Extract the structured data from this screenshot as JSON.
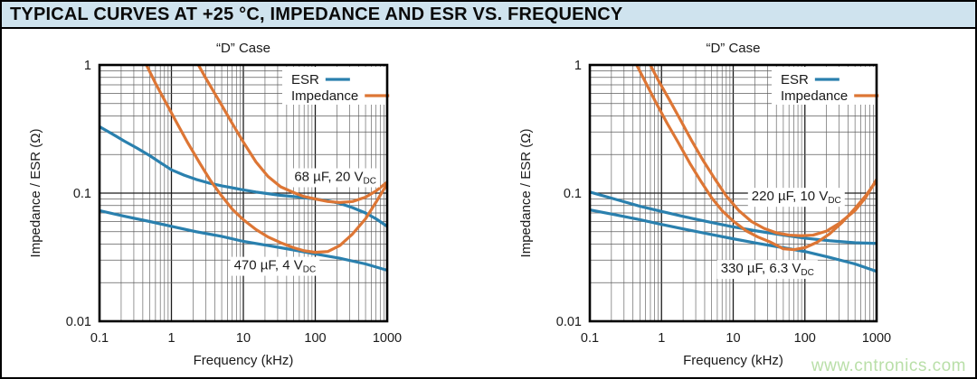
{
  "header": {
    "title": "TYPICAL CURVES AT +25 °C, IMPEDANCE AND ESR VS. FREQUENCY"
  },
  "watermark": {
    "text": "www.cntronics.com"
  },
  "colors": {
    "esr": "#2a80ae",
    "impedance": "#dd7635",
    "header_bg": "#cfe3ee",
    "grid_major": "#1c1c1c",
    "grid_minor": "#5e5e5e",
    "frame": "#000000",
    "text": "#1a1a1a",
    "watermark": "#b9dfa8"
  },
  "chart_data": [
    {
      "type": "line",
      "title": "“D” Case",
      "xlabel": "Frequency (kHz)",
      "ylabel": "Impedance / ESR (Ω)",
      "xscale": "log",
      "yscale": "log",
      "xlim": [
        0.1,
        1000
      ],
      "ylim": [
        0.01,
        1
      ],
      "xtick_labels": [
        "0.1",
        "1",
        "10",
        "100",
        "1000"
      ],
      "ytick_labels": [
        "1",
        "0.1",
        "0.01"
      ],
      "legend": [
        {
          "label": "ESR",
          "role": "esr"
        },
        {
          "label": "Impedance",
          "role": "impedance"
        }
      ],
      "series": [
        {
          "name": "esr-68uf-20vdc",
          "role": "esr",
          "points": [
            [
              0.1,
              0.33
            ],
            [
              0.15,
              0.29
            ],
            [
              0.22,
              0.255
            ],
            [
              0.33,
              0.225
            ],
            [
              0.5,
              0.196
            ],
            [
              0.7,
              0.173
            ],
            [
              1,
              0.152
            ],
            [
              1.5,
              0.138
            ],
            [
              2.2,
              0.128
            ],
            [
              3.3,
              0.12
            ],
            [
              5,
              0.114
            ],
            [
              7,
              0.11
            ],
            [
              10,
              0.106
            ],
            [
              15,
              0.102
            ],
            [
              22,
              0.099
            ],
            [
              33,
              0.096
            ],
            [
              50,
              0.094
            ],
            [
              70,
              0.092
            ],
            [
              100,
              0.09
            ],
            [
              150,
              0.087
            ],
            [
              220,
              0.083
            ],
            [
              330,
              0.077
            ],
            [
              500,
              0.07
            ],
            [
              700,
              0.063
            ],
            [
              1000,
              0.055
            ]
          ]
        },
        {
          "name": "esr-470uf-4vdc",
          "role": "esr",
          "points": [
            [
              0.1,
              0.073
            ],
            [
              0.22,
              0.066
            ],
            [
              0.5,
              0.06
            ],
            [
              1,
              0.055
            ],
            [
              2.2,
              0.05
            ],
            [
              5,
              0.046
            ],
            [
              10,
              0.042
            ],
            [
              22,
              0.039
            ],
            [
              50,
              0.036
            ],
            [
              100,
              0.0335
            ],
            [
              220,
              0.031
            ],
            [
              500,
              0.028
            ],
            [
              1000,
              0.025
            ]
          ]
        },
        {
          "name": "impedance-68uf-20vdc",
          "role": "impedance",
          "points": [
            [
              2.2,
              1.08
            ],
            [
              3,
              0.79
            ],
            [
              4,
              0.6
            ],
            [
              5,
              0.485
            ],
            [
              7,
              0.35
            ],
            [
              10,
              0.25
            ],
            [
              15,
              0.175
            ],
            [
              22,
              0.135
            ],
            [
              33,
              0.112
            ],
            [
              50,
              0.101
            ],
            [
              70,
              0.094
            ],
            [
              100,
              0.09
            ],
            [
              150,
              0.086
            ],
            [
              220,
              0.0845
            ],
            [
              330,
              0.086
            ],
            [
              500,
              0.093
            ],
            [
              700,
              0.104
            ],
            [
              1000,
              0.122
            ]
          ]
        },
        {
          "name": "impedance-470uf-4vdc",
          "role": "impedance",
          "points": [
            [
              0.42,
              1.08
            ],
            [
              0.6,
              0.72
            ],
            [
              0.85,
              0.5
            ],
            [
              1.2,
              0.35
            ],
            [
              1.7,
              0.245
            ],
            [
              2.5,
              0.17
            ],
            [
              3.5,
              0.125
            ],
            [
              5,
              0.095
            ],
            [
              7,
              0.075
            ],
            [
              10,
              0.062
            ],
            [
              15,
              0.052
            ],
            [
              22,
              0.0455
            ],
            [
              33,
              0.041
            ],
            [
              50,
              0.0375
            ],
            [
              70,
              0.0355
            ],
            [
              100,
              0.0345
            ],
            [
              150,
              0.035
            ],
            [
              220,
              0.039
            ],
            [
              330,
              0.048
            ],
            [
              500,
              0.063
            ],
            [
              700,
              0.085
            ],
            [
              1000,
              0.118
            ]
          ]
        }
      ],
      "annotations": [
        {
          "text": "68 µF, 20 V",
          "sub": "DC",
          "x": 190,
          "y": 0.135
        },
        {
          "text": "470 µF, 4 V",
          "sub": "DC",
          "x": 27.5,
          "y": 0.0275
        }
      ]
    },
    {
      "type": "line",
      "title": "“D” Case",
      "xlabel": "Frequency (kHz)",
      "ylabel": "Impedance / ESR (Ω)",
      "xscale": "log",
      "yscale": "log",
      "xlim": [
        0.1,
        1000
      ],
      "ylim": [
        0.01,
        1
      ],
      "xtick_labels": [
        "0.1",
        "1",
        "10",
        "100",
        "1000"
      ],
      "ytick_labels": [
        "1",
        "0.1",
        "0.01"
      ],
      "legend": [
        {
          "label": "ESR",
          "role": "esr"
        },
        {
          "label": "Impedance",
          "role": "impedance"
        }
      ],
      "series": [
        {
          "name": "esr-220uf-10vdc",
          "role": "esr",
          "points": [
            [
              0.1,
              0.102
            ],
            [
              0.22,
              0.09
            ],
            [
              0.5,
              0.079
            ],
            [
              1,
              0.072
            ],
            [
              2.2,
              0.065
            ],
            [
              5,
              0.059
            ],
            [
              10,
              0.0545
            ],
            [
              22,
              0.0505
            ],
            [
              50,
              0.047
            ],
            [
              100,
              0.0445
            ],
            [
              220,
              0.0425
            ],
            [
              500,
              0.041
            ],
            [
              1000,
              0.0405
            ]
          ]
        },
        {
          "name": "esr-330uf-63vdc",
          "role": "esr",
          "points": [
            [
              0.1,
              0.074
            ],
            [
              0.22,
              0.068
            ],
            [
              0.5,
              0.062
            ],
            [
              1,
              0.057
            ],
            [
              2.2,
              0.052
            ],
            [
              5,
              0.0475
            ],
            [
              10,
              0.044
            ],
            [
              22,
              0.0405
            ],
            [
              50,
              0.0375
            ],
            [
              100,
              0.035
            ],
            [
              220,
              0.0315
            ],
            [
              500,
              0.028
            ],
            [
              1000,
              0.0245
            ]
          ]
        },
        {
          "name": "impedance-220uf-10vdc",
          "role": "impedance",
          "points": [
            [
              0.65,
              1.08
            ],
            [
              0.9,
              0.76
            ],
            [
              1.3,
              0.53
            ],
            [
              1.8,
              0.38
            ],
            [
              2.6,
              0.26
            ],
            [
              3.8,
              0.18
            ],
            [
              5.5,
              0.13
            ],
            [
              8,
              0.095
            ],
            [
              12,
              0.073
            ],
            [
              18,
              0.06
            ],
            [
              27,
              0.053
            ],
            [
              40,
              0.049
            ],
            [
              60,
              0.047
            ],
            [
              90,
              0.0465
            ],
            [
              130,
              0.047
            ],
            [
              200,
              0.0505
            ],
            [
              300,
              0.058
            ],
            [
              500,
              0.073
            ],
            [
              700,
              0.092
            ],
            [
              1000,
              0.128
            ]
          ]
        },
        {
          "name": "impedance-330uf-63vdc",
          "role": "impedance",
          "points": [
            [
              0.42,
              1.08
            ],
            [
              0.6,
              0.73
            ],
            [
              0.85,
              0.5
            ],
            [
              1.2,
              0.35
            ],
            [
              1.7,
              0.25
            ],
            [
              2.5,
              0.17
            ],
            [
              3.5,
              0.125
            ],
            [
              5,
              0.092
            ],
            [
              7,
              0.073
            ],
            [
              10,
              0.0605
            ],
            [
              15,
              0.051
            ],
            [
              22,
              0.0455
            ],
            [
              33,
              0.0415
            ],
            [
              50,
              0.0368
            ],
            [
              70,
              0.0362
            ],
            [
              100,
              0.0375
            ],
            [
              150,
              0.0415
            ],
            [
              220,
              0.048
            ],
            [
              330,
              0.059
            ],
            [
              500,
              0.076
            ],
            [
              700,
              0.095
            ],
            [
              1000,
              0.125
            ]
          ]
        }
      ],
      "annotations": [
        {
          "text": "220 µF, 10 V",
          "sub": "DC",
          "x": 76,
          "y": 0.095
        },
        {
          "text": "330 µF, 6.3 V",
          "sub": "DC",
          "x": 30,
          "y": 0.026
        }
      ]
    }
  ]
}
